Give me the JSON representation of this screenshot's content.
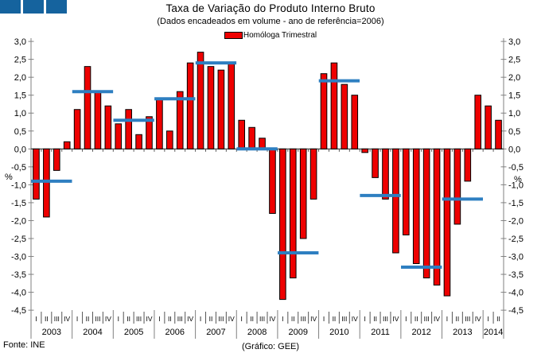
{
  "header": {
    "title": "Taxa de Variação do Produto Interno Bruto",
    "subtitle": "(Dados encadeados em volume - ano de referência=2006)"
  },
  "legend": {
    "label": "Homóloga Trimestral"
  },
  "footer": {
    "source": "Fonte: INE",
    "credit": "(Gráfico: GEE)"
  },
  "logo": {
    "description": "three-blue-squares-logo",
    "color": "#15639E"
  },
  "chart_data": {
    "type": "bar",
    "title": "Taxa de Variação do Produto Interno Bruto",
    "subtitle": "(Dados encadeados em volume - ano de referência=2006)",
    "legend_entries": [
      "Homóloga Trimestral"
    ],
    "legend_position": "top-center",
    "ylabel_left": "%",
    "ylabel_right": "%",
    "ylim": [
      -4.5,
      3.0
    ],
    "ytick_step": 0.5,
    "decimal_separator": ",",
    "grid": false,
    "bar_color": "#EE0000",
    "bar_border_color": "#000000",
    "annual_line_color": "#2E7FC1",
    "axis_color": "#808080",
    "zero_line_color": "#333333",
    "quarter_labels": [
      "I",
      "II",
      "III",
      "IV"
    ],
    "series_name": "Homóloga Trimestral (%)",
    "years": [
      {
        "year": "2003",
        "values": [
          -1.4,
          -1.9,
          -0.6,
          0.2
        ],
        "annual": -0.9
      },
      {
        "year": "2004",
        "values": [
          1.1,
          2.3,
          1.6,
          1.2
        ],
        "annual": 1.6
      },
      {
        "year": "2005",
        "values": [
          0.7,
          1.1,
          0.4,
          0.9
        ],
        "annual": 0.8
      },
      {
        "year": "2006",
        "values": [
          1.4,
          0.5,
          1.6,
          2.4
        ],
        "annual": 1.4
      },
      {
        "year": "2007",
        "values": [
          2.7,
          2.3,
          2.2,
          2.4
        ],
        "annual": 2.4
      },
      {
        "year": "2008",
        "values": [
          0.8,
          0.6,
          0.3,
          -1.8
        ],
        "annual": 0.0
      },
      {
        "year": "2009",
        "values": [
          -4.2,
          -3.6,
          -2.5,
          -1.4
        ],
        "annual": -2.9
      },
      {
        "year": "2010",
        "values": [
          2.1,
          2.4,
          1.8,
          1.5
        ],
        "annual": 1.9
      },
      {
        "year": "2011",
        "values": [
          -0.1,
          -0.8,
          -1.4,
          -2.9
        ],
        "annual": -1.3
      },
      {
        "year": "2012",
        "values": [
          -2.4,
          -3.2,
          -3.6,
          -3.8
        ],
        "annual": -3.3
      },
      {
        "year": "2013",
        "values": [
          -4.1,
          -2.1,
          -0.9,
          1.5
        ],
        "annual": -1.4
      },
      {
        "year": "2014",
        "values": [
          1.2,
          0.8
        ],
        "annual": null
      }
    ]
  }
}
